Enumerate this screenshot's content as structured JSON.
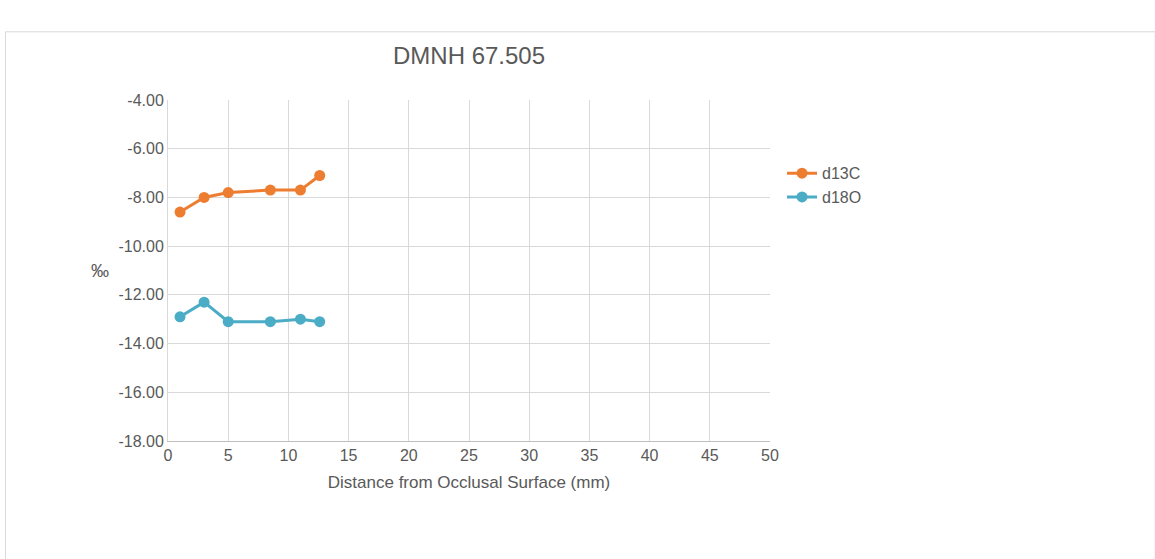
{
  "chart_data": {
    "type": "line",
    "title": "DMNH 67.505",
    "x_label": "Distance from Occlusal Surface (mm)",
    "y_label": "‰",
    "series": [
      {
        "name": "d13C",
        "color": "#ed7d31",
        "marker": "circle",
        "x": [
          1,
          3,
          5,
          8.5,
          11,
          12.6
        ],
        "values": [
          -8.6,
          -8.0,
          -7.8,
          -7.7,
          -7.7,
          -7.1
        ]
      },
      {
        "name": "d18O",
        "color": "#4bacc6",
        "marker": "circle",
        "x": [
          1,
          3,
          5,
          8.5,
          11,
          12.6
        ],
        "values": [
          -12.9,
          -12.3,
          -13.1,
          -13.1,
          -13.0,
          -13.1
        ]
      }
    ],
    "xlim": [
      0,
      50
    ],
    "xticks": [
      0,
      5,
      10,
      15,
      20,
      25,
      30,
      35,
      40,
      45,
      50
    ],
    "ylim": [
      -18,
      -4
    ],
    "yticks": [
      {
        "value": -18,
        "label": "-18.00"
      },
      {
        "value": -16,
        "label": "-16.00"
      },
      {
        "value": -14,
        "label": "-14.00"
      },
      {
        "value": -12,
        "label": "-12.00"
      },
      {
        "value": -10,
        "label": "-10.00"
      },
      {
        "value": -8,
        "label": "-8.00"
      },
      {
        "value": -6,
        "label": "-6.00"
      },
      {
        "value": -4,
        "label": "-4.00"
      }
    ],
    "grid": true,
    "legend": "right"
  }
}
